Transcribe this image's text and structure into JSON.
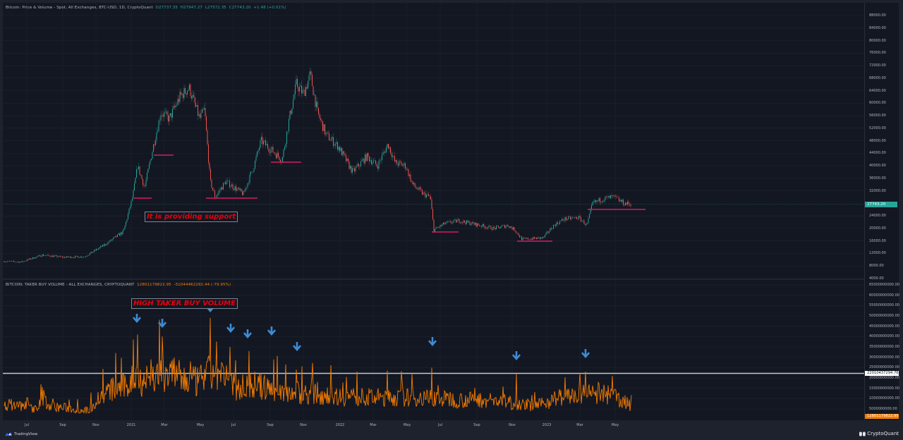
{
  "header": {
    "price_legend_title": "Bitcoin: Price & Volume - Spot, All Exchanges, BTC-USD, 1D, CryptoQuant",
    "ohlc": {
      "open": "O27737.35",
      "high": "H27947.27",
      "low": "L27572.35",
      "close": "C27743.20",
      "change": "+1.48 (+0.01%)"
    },
    "volume_legend_title": "BITCOIN: TAKER BUY VOLUME - ALL EXCHANGES, CRYPTOQUANT",
    "volume_value": "12801179822.95",
    "volume_change": "-51044462292.44 (-79.95%)"
  },
  "annotations": {
    "support_text": "It is providing support",
    "volume_text": "HIGH TAKER BUY VOLUME"
  },
  "price_axis": {
    "labels": [
      "88000.00",
      "84000.00",
      "80000.00",
      "76000.00",
      "72000.00",
      "68000.00",
      "64000.00",
      "60000.00",
      "56000.00",
      "52000.00",
      "48000.00",
      "44000.00",
      "40000.00",
      "36000.00",
      "32000.00",
      "24000.00",
      "20000.00",
      "16000.00",
      "12000.00",
      "8000.00",
      "4000.00"
    ],
    "current_price": "27743.20"
  },
  "volume_axis": {
    "labels": [
      "65000000000.00",
      "60000000000.00",
      "55000000000.00",
      "50000000000.00",
      "45000000000.00",
      "40000000000.00",
      "35000000000.00",
      "30000000000.00",
      "25000000000.00",
      "20000000000.00",
      "15000000000.00",
      "10000000000.00",
      "5000000000.00"
    ],
    "hline_value": "22010437294.76",
    "current_value": "12801179822.95"
  },
  "x_axis": {
    "labels": [
      "Jul",
      "Sep",
      "Nov",
      "2021",
      "Mar",
      "May",
      "Jul",
      "Sep",
      "Nov",
      "2022",
      "Mar",
      "May",
      "Jul",
      "Sep",
      "Nov",
      "2023",
      "Mar",
      "May"
    ]
  },
  "footer": {
    "left_brand": "TradingView",
    "right_brand": "CryptoQuant"
  },
  "colors": {
    "background": "#131722",
    "up": "#26a69a",
    "down": "#ef5350",
    "volume_line": "#f57c00",
    "support_line": "#d81b60",
    "arrow": "#3d8bd4",
    "annotation_text": "#e8000b"
  },
  "chart_data": [
    {
      "type": "line",
      "title": "Bitcoin: Price & Volume - Spot, All Exchanges, BTC-USD, 1D",
      "xlabel": "",
      "ylabel": "Price (USD)",
      "ylim": [
        4000,
        90000
      ],
      "x": [
        "2020-06",
        "2020-08",
        "2020-10",
        "2020-12",
        "2021-01",
        "2021-02",
        "2021-04",
        "2021-05",
        "2021-07",
        "2021-08",
        "2021-10",
        "2021-11",
        "2022-01",
        "2022-03",
        "2022-05",
        "2022-06",
        "2022-08",
        "2022-11",
        "2023-01",
        "2023-03",
        "2023-04",
        "2023-05"
      ],
      "values": [
        9500,
        11500,
        11000,
        19000,
        33000,
        47000,
        60000,
        37000,
        31000,
        47000,
        60000,
        67000,
        42000,
        44000,
        30000,
        20000,
        23000,
        16000,
        16500,
        22000,
        29000,
        27743
      ],
      "support_levels": [
        29000,
        43000,
        29000,
        40000,
        18500,
        16000,
        26500
      ],
      "annotation": "It is providing support",
      "last_price": 27743.2
    },
    {
      "type": "line",
      "title": "BITCOIN: TAKER BUY VOLUME - ALL EXCHANGES, CRYPTOQUANT",
      "ylabel": "Volume",
      "ylim": [
        0,
        65000000000
      ],
      "x": [
        "2020-06",
        "2020-08",
        "2020-10",
        "2020-12",
        "2021-01",
        "2021-03",
        "2021-05",
        "2021-06",
        "2021-07",
        "2021-09",
        "2021-10",
        "2022-01",
        "2022-06",
        "2022-11",
        "2023-03",
        "2023-05"
      ],
      "values": [
        7000000000,
        5500000000,
        9000000000,
        22000000000,
        39000000000,
        38000000000,
        47000000000,
        35000000000,
        33000000000,
        28000000000,
        22000000000,
        15000000000,
        24000000000,
        22000000000,
        22000000000,
        12801179822.95
      ],
      "hline": 22010437294.76,
      "annotation": "HIGH TAKER BUY VOLUME",
      "last_value": 12801179822.95,
      "change": -51044462292.44,
      "change_pct": -79.95
    }
  ]
}
